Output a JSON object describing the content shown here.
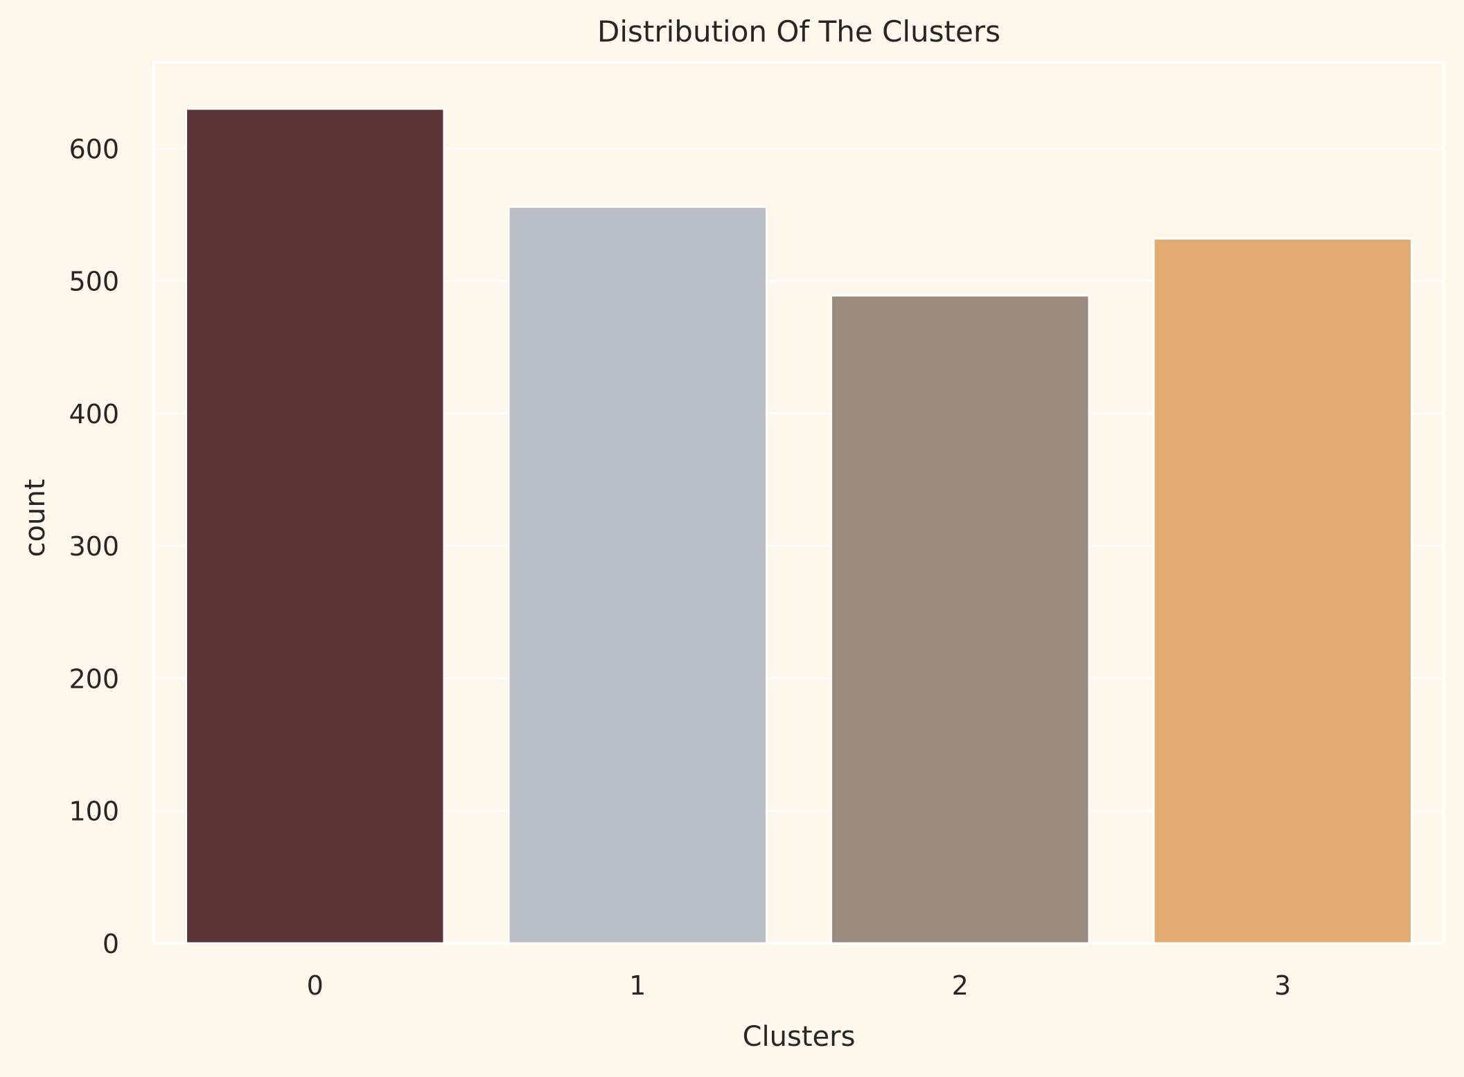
{
  "chart_data": {
    "type": "bar",
    "title": "Distribution Of The Clusters",
    "xlabel": "Clusters",
    "ylabel": "count",
    "categories": [
      "0",
      "1",
      "2",
      "3"
    ],
    "values": [
      630,
      556,
      489,
      532
    ],
    "ylim": [
      0,
      665
    ],
    "yticks": [
      0,
      100,
      200,
      300,
      400,
      500,
      600
    ],
    "grid": true,
    "legend": "none",
    "colors": {
      "background": "#FEF7EB",
      "plot_background": "#FEF7EB",
      "grid": "#FFFFFF",
      "text": "#262626",
      "bars": [
        "#5E3537",
        "#BABEC6",
        "#9A8B7E",
        "#E1AB71"
      ]
    }
  }
}
